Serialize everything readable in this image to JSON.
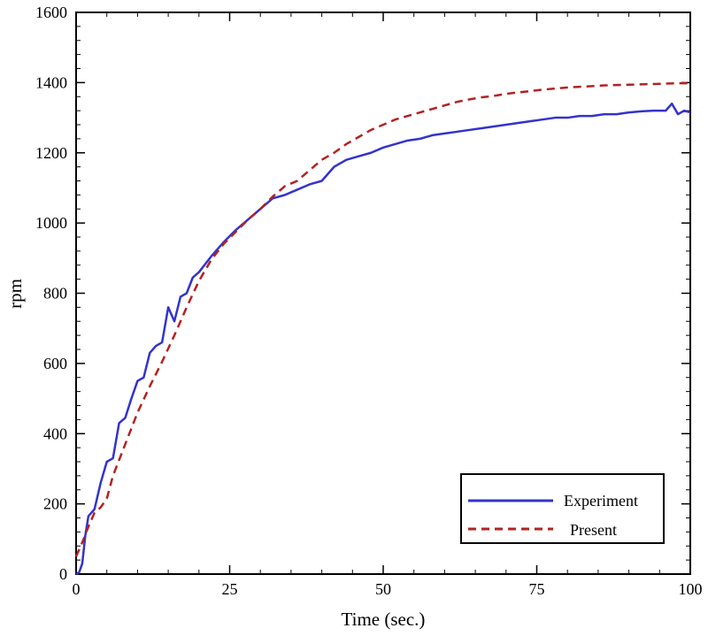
{
  "chart_data": {
    "type": "line",
    "title": "",
    "xlabel": "Time (sec.)",
    "ylabel": "rpm",
    "xlim": [
      0,
      100
    ],
    "ylim": [
      0,
      1600
    ],
    "xticks": [
      0,
      25,
      50,
      75,
      100
    ],
    "yticks": [
      0,
      200,
      400,
      600,
      800,
      1000,
      1200,
      1400,
      1600
    ],
    "xtick_labels": [
      "0",
      "25",
      "50",
      "75",
      "100"
    ],
    "ytick_labels": [
      "0",
      "200",
      "400",
      "600",
      "800",
      "1000",
      "1200",
      "1400",
      "1600"
    ],
    "grid": false,
    "legend_position": "bottom-right",
    "series": [
      {
        "name": "Experiment",
        "color": "#3333cc",
        "style": "solid",
        "x": [
          0,
          0.5,
          1,
          1.5,
          2,
          2.5,
          3,
          4,
          5,
          6,
          7,
          8,
          9,
          10,
          11,
          12,
          13,
          14,
          15,
          16,
          17,
          18,
          19,
          20,
          22,
          24,
          26,
          28,
          30,
          32,
          34,
          36,
          38,
          40,
          42,
          44,
          46,
          48,
          50,
          52,
          54,
          56,
          58,
          60,
          62,
          64,
          66,
          68,
          70,
          72,
          74,
          76,
          78,
          80,
          82,
          84,
          86,
          88,
          90,
          92,
          94,
          96,
          97,
          98,
          99,
          100
        ],
        "y": [
          0,
          5,
          30,
          110,
          165,
          175,
          185,
          260,
          320,
          330,
          430,
          445,
          500,
          550,
          560,
          630,
          650,
          660,
          760,
          720,
          790,
          800,
          845,
          860,
          905,
          945,
          980,
          1010,
          1040,
          1070,
          1080,
          1095,
          1110,
          1120,
          1160,
          1180,
          1190,
          1200,
          1215,
          1225,
          1235,
          1240,
          1250,
          1255,
          1260,
          1265,
          1270,
          1275,
          1280,
          1285,
          1290,
          1295,
          1300,
          1300,
          1305,
          1305,
          1310,
          1310,
          1315,
          1318,
          1320,
          1320,
          1340,
          1310,
          1320,
          1315
        ]
      },
      {
        "name": "Present",
        "color": "#b22222",
        "style": "dashed",
        "x": [
          0,
          1,
          2,
          3,
          4,
          5,
          6,
          8,
          10,
          12,
          14,
          16,
          18,
          20,
          22,
          24,
          26,
          28,
          30,
          32,
          34,
          36,
          38,
          40,
          42,
          44,
          46,
          48,
          50,
          52,
          54,
          56,
          58,
          60,
          62,
          64,
          66,
          68,
          70,
          72,
          74,
          76,
          78,
          80,
          82,
          84,
          86,
          88,
          90,
          92,
          94,
          96,
          98,
          100
        ],
        "y": [
          50,
          90,
          135,
          175,
          190,
          215,
          280,
          370,
          460,
          535,
          605,
          680,
          760,
          835,
          895,
          940,
          975,
          1010,
          1040,
          1075,
          1105,
          1120,
          1150,
          1180,
          1200,
          1225,
          1245,
          1265,
          1280,
          1295,
          1305,
          1315,
          1325,
          1335,
          1345,
          1352,
          1358,
          1362,
          1368,
          1372,
          1376,
          1380,
          1383,
          1386,
          1388,
          1390,
          1392,
          1393,
          1394,
          1395,
          1396,
          1397,
          1398,
          1398
        ]
      }
    ]
  }
}
